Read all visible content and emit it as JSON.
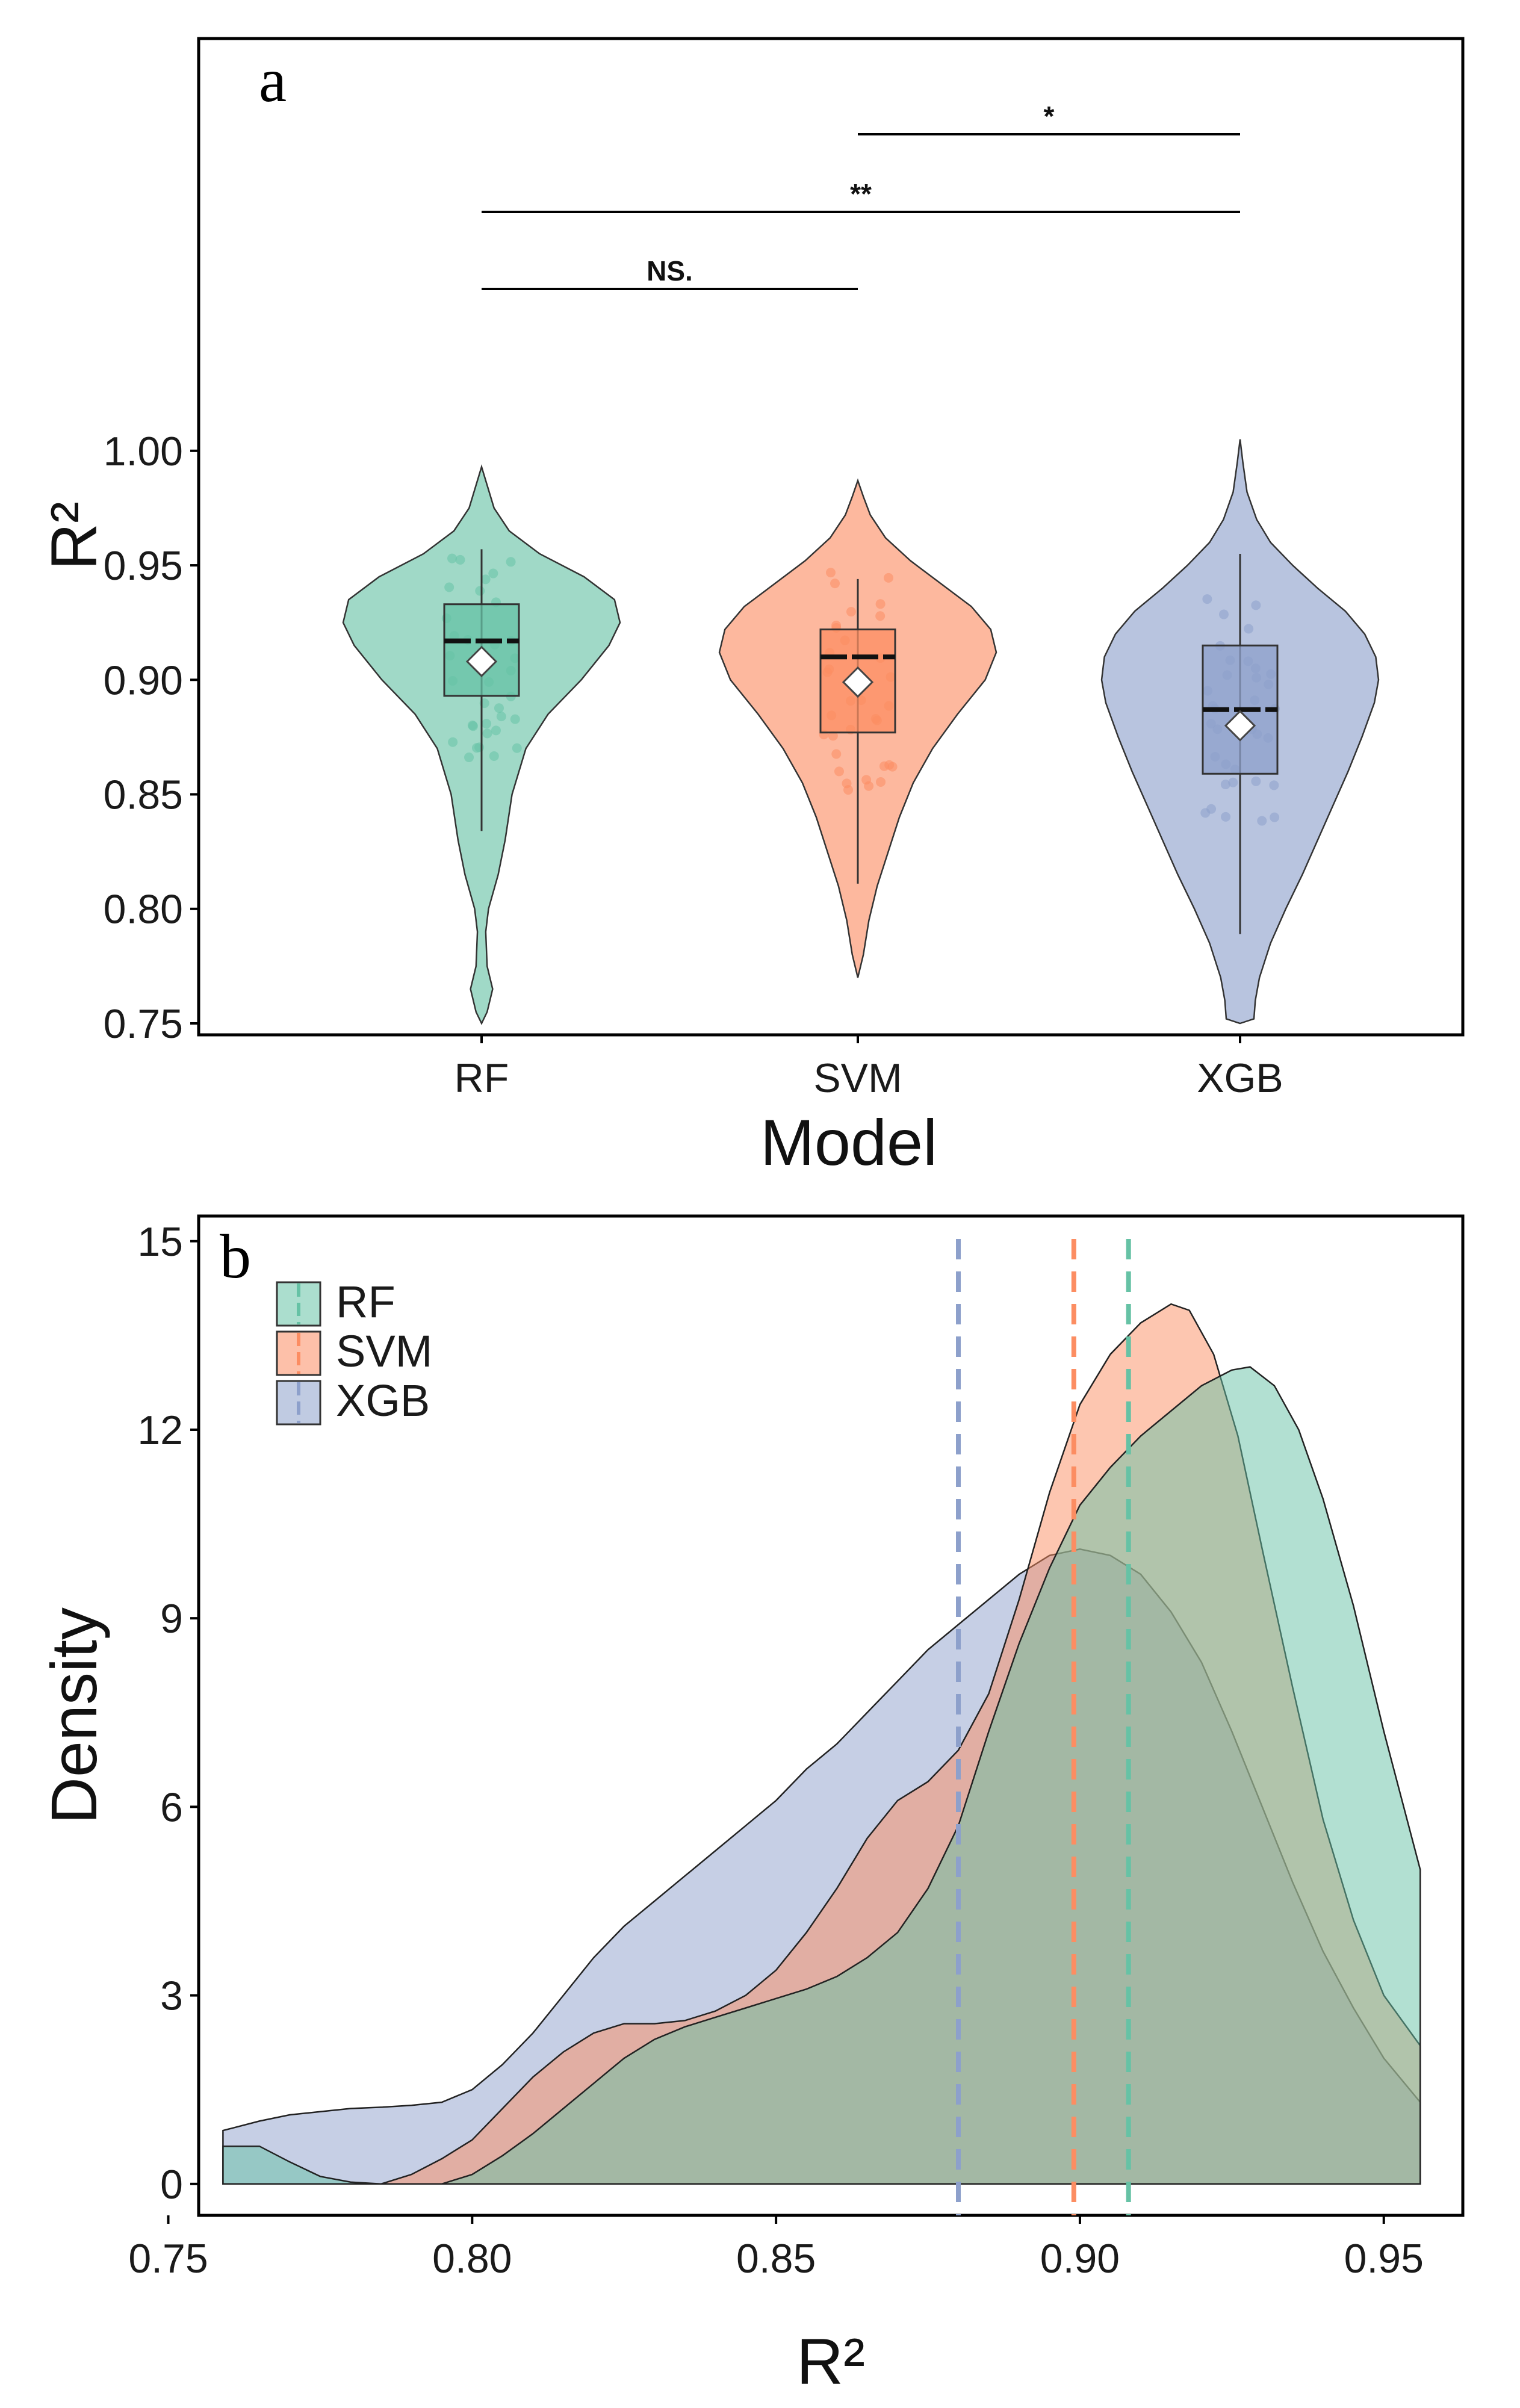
{
  "colors": {
    "RF": "#66c2a5",
    "SVM": "#fc8d62",
    "XGB": "#8da0cb"
  },
  "chart_data": [
    {
      "panel": "a",
      "type": "violin",
      "xlabel": "Model",
      "ylabel": "R²",
      "ylim": [
        0.745,
        1.18
      ],
      "yticks": [
        "0.75",
        "0.80",
        "0.85",
        "0.90",
        "0.95",
        "1.00"
      ],
      "categories": [
        "RF",
        "SVM",
        "XGB"
      ],
      "grid": false,
      "series": [
        {
          "name": "RF",
          "median": 0.917,
          "q1": 0.893,
          "q3": 0.933,
          "whisker_low": 0.834,
          "whisker_high": 0.957,
          "mean": 0.908,
          "violin_min": 0.75,
          "violin_max": 0.993
        },
        {
          "name": "SVM",
          "median": 0.91,
          "q1": 0.877,
          "q3": 0.922,
          "whisker_low": 0.811,
          "whisker_high": 0.944,
          "mean": 0.899,
          "violin_min": 0.77,
          "violin_max": 0.987
        },
        {
          "name": "XGB",
          "median": 0.887,
          "q1": 0.859,
          "q3": 0.915,
          "whisker_low": 0.789,
          "whisker_high": 0.955,
          "mean": 0.88,
          "violin_min": 0.75,
          "violin_max": 1.005
        }
      ],
      "comparisons": [
        {
          "groups": [
            "RF",
            "SVM"
          ],
          "label": "NS."
        },
        {
          "groups": [
            "RF",
            "XGB"
          ],
          "label": "**"
        },
        {
          "groups": [
            "SVM",
            "XGB"
          ],
          "label": "*"
        }
      ]
    },
    {
      "panel": "b",
      "type": "area",
      "xlabel": "R²",
      "ylabel": "Density",
      "xlim": [
        0.755,
        0.963
      ],
      "ylim": [
        -0.5,
        15.4
      ],
      "xticks": [
        "0.75",
        "0.80",
        "0.85",
        "0.90",
        "0.95"
      ],
      "yticks": [
        "0",
        "3",
        "6",
        "9",
        "12",
        "15"
      ],
      "legend_position": "top-left",
      "grid": false,
      "series": [
        {
          "name": "RF",
          "mean_line": 0.908,
          "x": [
            0.759,
            0.765,
            0.77,
            0.775,
            0.78,
            0.785,
            0.79,
            0.795,
            0.8,
            0.805,
            0.81,
            0.815,
            0.82,
            0.825,
            0.83,
            0.835,
            0.84,
            0.845,
            0.85,
            0.855,
            0.86,
            0.865,
            0.87,
            0.875,
            0.88,
            0.885,
            0.89,
            0.895,
            0.9,
            0.905,
            0.91,
            0.915,
            0.92,
            0.925,
            0.928,
            0.932,
            0.936,
            0.94,
            0.945,
            0.95,
            0.956
          ],
          "y": [
            0.6,
            0.6,
            0.35,
            0.12,
            0.03,
            0.0,
            0.0,
            0.0,
            0.15,
            0.45,
            0.8,
            1.2,
            1.6,
            2.0,
            2.3,
            2.5,
            2.65,
            2.8,
            2.95,
            3.1,
            3.3,
            3.6,
            4.0,
            4.7,
            5.7,
            7.2,
            8.6,
            9.8,
            10.8,
            11.4,
            11.9,
            12.3,
            12.7,
            12.95,
            13.0,
            12.7,
            12.0,
            10.9,
            9.2,
            7.2,
            5.0
          ]
        },
        {
          "name": "SVM",
          "mean_line": 0.899,
          "x": [
            0.759,
            0.765,
            0.77,
            0.775,
            0.78,
            0.785,
            0.79,
            0.795,
            0.8,
            0.805,
            0.81,
            0.815,
            0.82,
            0.825,
            0.83,
            0.835,
            0.84,
            0.845,
            0.85,
            0.855,
            0.86,
            0.865,
            0.87,
            0.875,
            0.88,
            0.885,
            0.89,
            0.895,
            0.9,
            0.905,
            0.91,
            0.915,
            0.918,
            0.922,
            0.926,
            0.93,
            0.935,
            0.94,
            0.945,
            0.95,
            0.956
          ],
          "y": [
            0.0,
            0.0,
            0.0,
            0.0,
            0.0,
            0.0,
            0.15,
            0.4,
            0.7,
            1.2,
            1.7,
            2.1,
            2.4,
            2.55,
            2.55,
            2.6,
            2.75,
            3.0,
            3.4,
            4.0,
            4.7,
            5.5,
            6.1,
            6.4,
            6.9,
            7.8,
            9.3,
            11.0,
            12.4,
            13.2,
            13.7,
            14.0,
            13.9,
            13.2,
            11.9,
            10.1,
            7.9,
            5.8,
            4.2,
            3.0,
            2.2
          ]
        },
        {
          "name": "XGB",
          "mean_line": 0.88,
          "x": [
            0.759,
            0.765,
            0.77,
            0.775,
            0.78,
            0.785,
            0.79,
            0.795,
            0.8,
            0.805,
            0.81,
            0.815,
            0.82,
            0.825,
            0.83,
            0.835,
            0.84,
            0.845,
            0.85,
            0.855,
            0.86,
            0.865,
            0.87,
            0.875,
            0.88,
            0.885,
            0.89,
            0.895,
            0.9,
            0.905,
            0.91,
            0.915,
            0.92,
            0.925,
            0.93,
            0.935,
            0.94,
            0.945,
            0.95,
            0.956
          ],
          "y": [
            0.85,
            1.0,
            1.1,
            1.15,
            1.2,
            1.22,
            1.25,
            1.3,
            1.5,
            1.9,
            2.4,
            3.0,
            3.6,
            4.1,
            4.5,
            4.9,
            5.3,
            5.7,
            6.1,
            6.6,
            7.0,
            7.5,
            8.0,
            8.5,
            8.9,
            9.3,
            9.7,
            10.0,
            10.1,
            10.0,
            9.7,
            9.1,
            8.3,
            7.2,
            6.0,
            4.8,
            3.7,
            2.8,
            2.0,
            1.3
          ]
        }
      ]
    }
  ]
}
